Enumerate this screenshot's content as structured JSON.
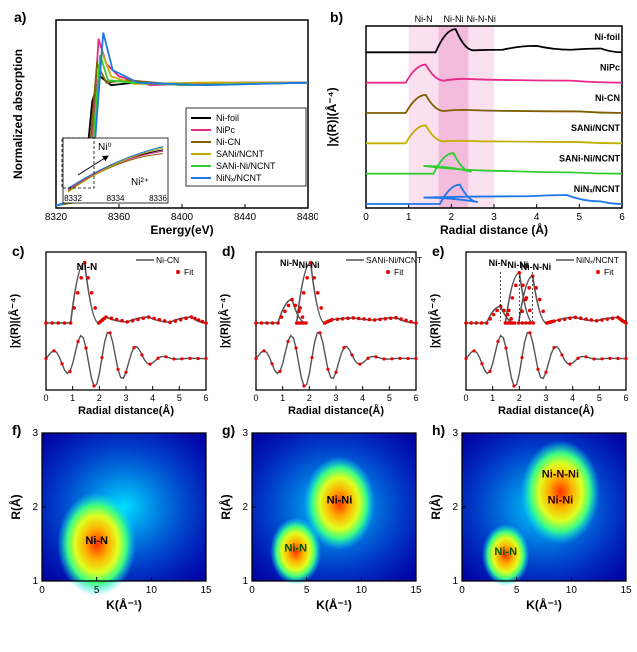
{
  "panels": {
    "a": {
      "label": "a)",
      "xlabel": "Energy(eV)",
      "ylabel": "Normalized absorption",
      "xlim": [
        8320,
        8480
      ],
      "xtick_step": 40,
      "legend": [
        "Ni-foil",
        "NiPc",
        "Ni-CN",
        "SANi/NCNT",
        "SANi-Ni/NCNT",
        "NiNₓ/NCNT"
      ],
      "colors": [
        "#000000",
        "#e7298a",
        "#7f6000",
        "#bfb000",
        "#33cc33",
        "#1f77e8"
      ],
      "inset_ticks": [
        "8332",
        "8334",
        "8336"
      ],
      "inset_labels": {
        "ni0": "Ni⁰",
        "ni2": "Ni²⁺"
      },
      "series": [
        {
          "c": "#000000",
          "pts": [
            [
              8320,
              0.02
            ],
            [
              8333,
              0.05
            ],
            [
              8338,
              0.2
            ],
            [
              8343,
              0.85
            ],
            [
              8348,
              1.05
            ],
            [
              8355,
              0.98
            ],
            [
              8370,
              1.0
            ],
            [
              8400,
              0.99
            ],
            [
              8440,
              1.0
            ],
            [
              8480,
              1.0
            ]
          ]
        },
        {
          "c": "#e7298a",
          "pts": [
            [
              8320,
              0.02
            ],
            [
              8335,
              0.06
            ],
            [
              8342,
              0.3
            ],
            [
              8347,
              1.35
            ],
            [
              8352,
              1.15
            ],
            [
              8360,
              1.05
            ],
            [
              8380,
              0.98
            ],
            [
              8420,
              1.0
            ],
            [
              8480,
              1.0
            ]
          ]
        },
        {
          "c": "#7f6000",
          "pts": [
            [
              8320,
              0.02
            ],
            [
              8334,
              0.05
            ],
            [
              8340,
              0.25
            ],
            [
              8346,
              1.15
            ],
            [
              8352,
              1.0
            ],
            [
              8365,
              1.02
            ],
            [
              8400,
              0.98
            ],
            [
              8480,
              1.0
            ]
          ]
        },
        {
          "c": "#bfb000",
          "pts": [
            [
              8320,
              0.02
            ],
            [
              8336,
              0.06
            ],
            [
              8343,
              0.35
            ],
            [
              8349,
              1.25
            ],
            [
              8355,
              1.05
            ],
            [
              8370,
              0.99
            ],
            [
              8410,
              1.0
            ],
            [
              8480,
              1.0
            ]
          ]
        },
        {
          "c": "#33cc33",
          "pts": [
            [
              8320,
              0.02
            ],
            [
              8335,
              0.07
            ],
            [
              8342,
              0.3
            ],
            [
              8348,
              1.22
            ],
            [
              8353,
              1.02
            ],
            [
              8368,
              1.0
            ],
            [
              8405,
              0.98
            ],
            [
              8480,
              1.0
            ]
          ]
        },
        {
          "c": "#1f77e8",
          "pts": [
            [
              8320,
              0.02
            ],
            [
              8337,
              0.08
            ],
            [
              8344,
              0.4
            ],
            [
              8350,
              1.4
            ],
            [
              8356,
              1.1
            ],
            [
              8372,
              1.0
            ],
            [
              8415,
              0.98
            ],
            [
              8480,
              1.0
            ]
          ]
        }
      ]
    },
    "b": {
      "label": "b)",
      "xlabel": "Radial distance (Å)",
      "ylabel": "|χ(R)|(Å⁻⁴)",
      "xlim": [
        0,
        6
      ],
      "xtick_step": 1,
      "bands": {
        "NiN": [
          1.0,
          1.7
        ],
        "NiNi": [
          1.7,
          2.4
        ],
        "NiNNi": [
          2.4,
          3.0
        ]
      },
      "band_labels": [
        "Ni-N",
        "Ni-Ni",
        "Ni-N-Ni"
      ],
      "band_colors": [
        "#fbe0ef",
        "#f4bcdc",
        "#fbe0ef"
      ],
      "traces": [
        {
          "label": "Ni-foil",
          "c": "#000000",
          "peak": 2.1,
          "h": 0.9,
          "tail": [
            [
              3.2,
              0.1
            ],
            [
              4.0,
              0.25
            ],
            [
              4.8,
              0.1
            ],
            [
              5.5,
              0.15
            ]
          ]
        },
        {
          "label": "NiPc",
          "c": "#e7298a",
          "peak": 1.4,
          "h": 0.7,
          "tail": [
            [
              2.3,
              0.15
            ],
            [
              3.5,
              0.1
            ],
            [
              4.8,
              0.08
            ]
          ]
        },
        {
          "label": "Ni-CN",
          "c": "#7f6000",
          "peak": 1.4,
          "h": 0.7,
          "tail": [
            [
              2.3,
              0.12
            ],
            [
              3.5,
              0.08
            ],
            [
              5.0,
              0.06
            ]
          ]
        },
        {
          "label": "SANi/NCNT",
          "c": "#bfb000",
          "peak": 1.4,
          "h": 0.7,
          "tail": [
            [
              2.2,
              0.1
            ],
            [
              3.4,
              0.07
            ],
            [
              5.0,
              0.05
            ]
          ]
        },
        {
          "label": "SANi-Ni/NCNT",
          "c": "#33cc33",
          "peak": 2.05,
          "h": 0.8,
          "tail": [
            [
              1.35,
              0.3
            ],
            [
              3.4,
              0.1
            ],
            [
              4.8,
              0.05
            ]
          ]
        },
        {
          "label": "NiNₓ/NCNT",
          "c": "#1f77e8",
          "peak": 2.2,
          "h": 0.75,
          "tail": [
            [
              1.35,
              0.25
            ],
            [
              3.8,
              0.3
            ],
            [
              4.7,
              0.35
            ],
            [
              5.5,
              0.1
            ]
          ]
        }
      ]
    },
    "fits": [
      {
        "label": "c)",
        "title": "Ni-CN",
        "exp_c": "#555555",
        "fit_c": "#e60000",
        "legend": [
          "Ni-CN",
          "Fit"
        ],
        "peak_label": "Ni-N",
        "peaks": [
          {
            "x": 1.45,
            "h": 0.9
          }
        ]
      },
      {
        "label": "d)",
        "title": "SANi-Ni/NCNT",
        "exp_c": "#555555",
        "fit_c": "#e60000",
        "legend": [
          "SANi-Ni/NCNT",
          "Fit"
        ],
        "peak_labels": [
          "Ni-N",
          "Ni-Ni"
        ],
        "peaks": [
          {
            "x": 1.35,
            "h": 0.35
          },
          {
            "x": 2.05,
            "h": 0.9
          }
        ]
      },
      {
        "label": "e)",
        "title": "NiNₓ/NCNT",
        "exp_c": "#555555",
        "fit_c": "#e60000",
        "legend": [
          "NiNₓ/NCNT",
          "Fit"
        ],
        "peak_labels": [
          "Ni-N",
          "Ni-Ni",
          "Ni-N-Ni"
        ],
        "peaks": [
          {
            "x": 1.3,
            "h": 0.25
          },
          {
            "x": 2.0,
            "h": 0.75
          },
          {
            "x": 2.5,
            "h": 0.7
          }
        ]
      }
    ],
    "fits_common": {
      "xlabel": "Radial distance(Å)",
      "ylabel": "|χ(R)|(Å⁻⁴)",
      "xlim": [
        0,
        6
      ],
      "xtick_step": 1
    },
    "wavelets": [
      {
        "label": "f)",
        "annotations": [
          {
            "txt": "Ni-N",
            "k": 5,
            "r": 1.5,
            "col": "#000"
          }
        ],
        "hot": [
          {
            "k": 5,
            "r": 1.5,
            "rad": 2.0
          }
        ]
      },
      {
        "label": "g)",
        "annotations": [
          {
            "txt": "Ni-N",
            "k": 4,
            "r": 1.4,
            "col": "#005500"
          },
          {
            "txt": "Ni-Ni",
            "k": 8,
            "r": 2.05,
            "col": "#000"
          }
        ],
        "hot": [
          {
            "k": 4,
            "r": 1.4,
            "rad": 1.3
          },
          {
            "k": 8,
            "r": 2.05,
            "rad": 1.8
          }
        ]
      },
      {
        "label": "h)",
        "annotations": [
          {
            "txt": "Ni-N",
            "k": 4,
            "r": 1.35,
            "col": "#005500"
          },
          {
            "txt": "Ni-Ni",
            "k": 9,
            "r": 2.05,
            "col": "#300"
          },
          {
            "txt": "Ni-N-Ni",
            "k": 9,
            "r": 2.4,
            "col": "#300"
          }
        ],
        "hot": [
          {
            "k": 4,
            "r": 1.35,
            "rad": 1.2
          },
          {
            "k": 9,
            "r": 2.2,
            "rad": 2.0
          }
        ]
      }
    ],
    "wavelets_common": {
      "xlabel": "K(Å⁻¹)",
      "ylabel": "R(Å)",
      "xlim": [
        0,
        15
      ],
      "xtick_step": 5,
      "ylim": [
        1,
        3
      ],
      "ytick_step": 1,
      "colormap": [
        "#0000a0",
        "#0060ff",
        "#00e0ff",
        "#40ff80",
        "#e0ff20",
        "#ffb000",
        "#ff3000"
      ]
    }
  }
}
